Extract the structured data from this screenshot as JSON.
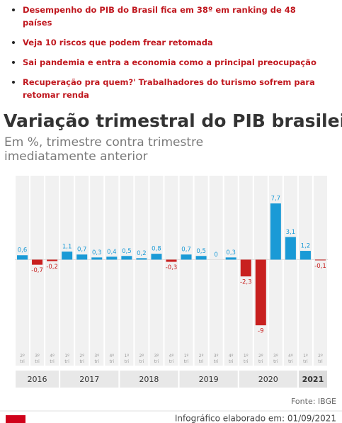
{
  "links": [
    "Desempenho do PIB do Brasil fica em 38º em ranking de 48 países",
    "Veja 10 riscos que podem frear retomada",
    "Sai pandemia e entra a economia como a principal preocupação",
    "Recuperação pra quem?' Trabalhadores do turismo sofrem para retomar renda"
  ],
  "chart_data": {
    "type": "bar",
    "title": "Variação trimestral do PIB brasileiro",
    "subtitle": [
      "Em %, trimestre contra trimestre",
      "imediatamente anterior"
    ],
    "categories": [
      "2º tri",
      "3º tri",
      "4º tri",
      "1º tri",
      "2º tri",
      "3º tri",
      "4º tri",
      "1º tri",
      "2º tri",
      "3º tri",
      "4º tri",
      "1º tri",
      "2º tri",
      "3º tri",
      "4º tri",
      "1º tri",
      "2º tri",
      "3º tri",
      "4º tri",
      "1º tri",
      "2º tri"
    ],
    "years": [
      "2016",
      "2017",
      "2018",
      "2019",
      "2020",
      "2021"
    ],
    "values": [
      0.6,
      -0.7,
      -0.2,
      1.1,
      0.7,
      0.3,
      0.4,
      0.5,
      0.2,
      0.8,
      -0.3,
      0.7,
      0.5,
      0,
      0.3,
      -2.3,
      -9,
      7.7,
      3.1,
      1.2,
      -0.1
    ],
    "value_labels": [
      "0,6",
      "-0,7",
      "-0,2",
      "1,1",
      "0,7",
      "0,3",
      "0,4",
      "0,5",
      "0,2",
      "0,8",
      "-0,3",
      "0,7",
      "0,5",
      "0",
      "0,3",
      "-2,3",
      "-9",
      "7,7",
      "3,1",
      "1,2",
      "-0,1"
    ],
    "color": "#1a9ad6",
    "negative_color": "#c8201f",
    "ylim": [
      -12,
      11.5
    ],
    "source": "Fonte: IBGE",
    "footer": "Infográfico elaborado em: 01/09/2021"
  }
}
